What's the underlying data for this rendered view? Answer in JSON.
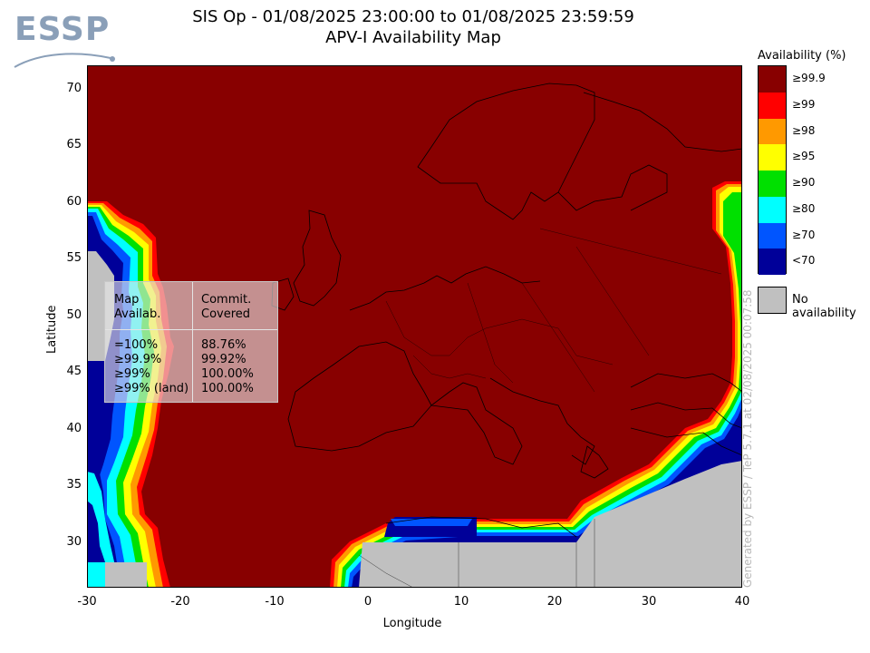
{
  "logo": {
    "text": "ESSP"
  },
  "title": {
    "line1": "SIS Op - 01/08/2025 23:00:00 to 01/08/2025 23:59:59",
    "line2": "APV-I Availability Map"
  },
  "axes": {
    "xlabel": "Longitude",
    "ylabel": "Latitude",
    "xticks": [
      "-30",
      "-20",
      "-10",
      "0",
      "10",
      "20",
      "30",
      "40"
    ],
    "yticks": [
      "70",
      "65",
      "60",
      "55",
      "50",
      "45",
      "40",
      "35",
      "30"
    ]
  },
  "legend": {
    "title": "Availability (%)",
    "items": [
      {
        "label": "≥99.9",
        "color": "#880000"
      },
      {
        "label": "≥99",
        "color": "#ff0000"
      },
      {
        "label": "≥98",
        "color": "#ff9900"
      },
      {
        "label": "≥95",
        "color": "#ffff00"
      },
      {
        "label": "≥90",
        "color": "#00e000"
      },
      {
        "label": "≥80",
        "color": "#00ffff"
      },
      {
        "label": "≥70",
        "color": "#0055ff"
      },
      {
        "label": "<70",
        "color": "#000099"
      }
    ],
    "no_availability": {
      "label": "No availability",
      "color": "#c0c0c0"
    }
  },
  "stats_table": {
    "header_col1": "Map\nAvailab.",
    "header_col2": "Commit.\nCovered",
    "rows": [
      {
        "availability": "=100%",
        "covered": "88.76%"
      },
      {
        "availability": "≥99.9%",
        "covered": "99.92%"
      },
      {
        "availability": "≥99%",
        "covered": "100.00%"
      },
      {
        "availability": "≥99% (land)",
        "covered": "100.00%"
      }
    ]
  },
  "footer": {
    "generated": "Generated by ESSP / TeP 5.7.1 at 02/08/2025 00:07:58"
  },
  "map": {
    "lon_range": [
      -30,
      40
    ],
    "lat_range": [
      26,
      72
    ],
    "colors": {
      "max": "#880000",
      "noavail": "#c0c0c0",
      "coast": "#000000"
    }
  }
}
